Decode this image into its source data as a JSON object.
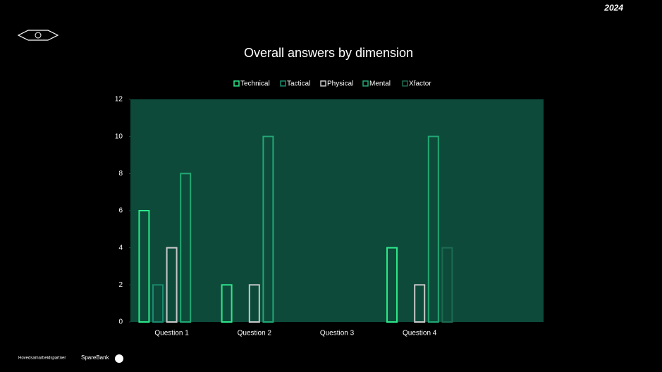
{
  "chart_data": {
    "type": "bar",
    "title": "Overall answers by dimension",
    "categories": [
      "Question 1",
      "Question 2",
      "Question 3",
      "Question 4",
      null
    ],
    "series": [
      {
        "name": "Technical",
        "color": "#2ee88a",
        "values": [
          6,
          2,
          0,
          4,
          null
        ]
      },
      {
        "name": "Tactical",
        "color": "#1a8a6e",
        "values": [
          2,
          0,
          0,
          0,
          null
        ]
      },
      {
        "name": "Physical",
        "color": "#c8c8c8",
        "values": [
          4,
          2,
          0,
          2,
          null
        ]
      },
      {
        "name": "Mental",
        "color": "#22a874",
        "values": [
          8,
          10,
          0,
          10,
          null
        ]
      },
      {
        "name": "Xfactor",
        "color": "#1c6b50",
        "values": [
          0,
          0,
          0,
          4,
          null
        ]
      }
    ],
    "ylim": [
      0,
      12
    ],
    "yticks": [
      0,
      2,
      4,
      6,
      8,
      10,
      12
    ],
    "legend": "top",
    "plot_background": "#0d4a3a"
  },
  "page": {
    "year": "2024",
    "footer": "Hovedsamarbeidspartner",
    "sponsor": "SpareBank"
  }
}
